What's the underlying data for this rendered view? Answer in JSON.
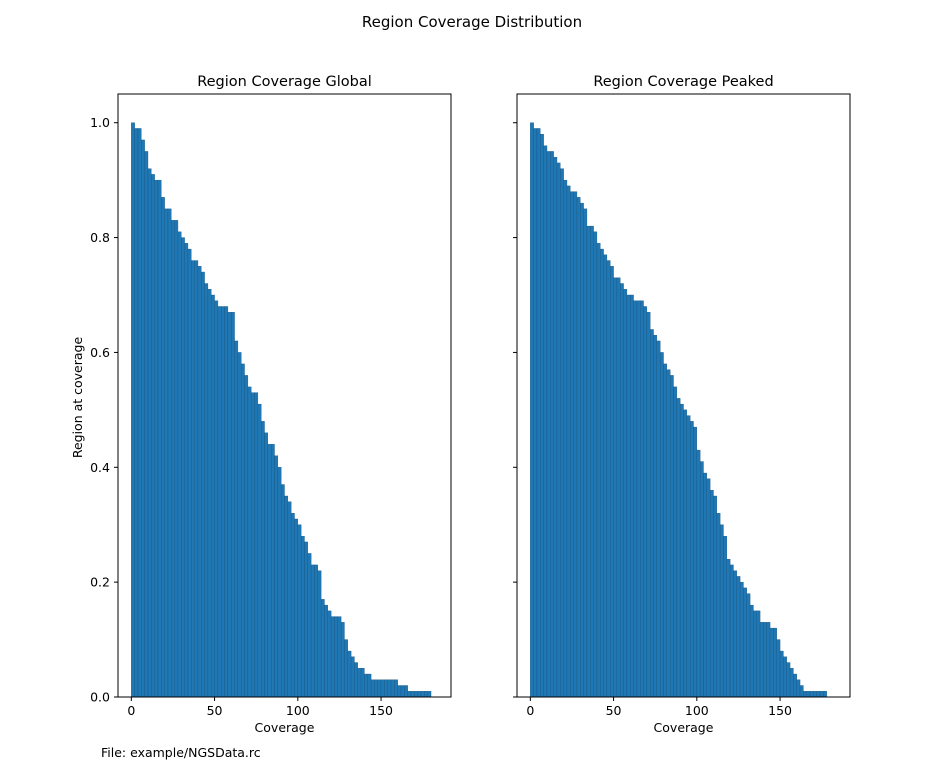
{
  "figure": {
    "suptitle": "Region Coverage Distribution",
    "footer": "File: example/NGSData.rc"
  },
  "chart_data": [
    {
      "type": "bar",
      "title": "Region Coverage Global",
      "xlabel": "Coverage",
      "ylabel": "Region at coverage",
      "xlim": [
        -8,
        192
      ],
      "ylim": [
        0,
        1.05
      ],
      "xticks": [
        0,
        50,
        100,
        150
      ],
      "yticks": [
        0.0,
        0.2,
        0.4,
        0.6,
        0.8,
        1.0
      ],
      "ytick_labels": [
        "0.0",
        "0.2",
        "0.4",
        "0.6",
        "0.8",
        "1.0"
      ],
      "color": "#1f77b4",
      "x": [
        0,
        2,
        4,
        6,
        8,
        10,
        12,
        14,
        16,
        18,
        20,
        22,
        24,
        26,
        28,
        30,
        32,
        34,
        36,
        38,
        40,
        42,
        44,
        46,
        48,
        50,
        52,
        54,
        56,
        58,
        60,
        62,
        64,
        66,
        68,
        70,
        72,
        74,
        76,
        78,
        80,
        82,
        84,
        86,
        88,
        90,
        92,
        94,
        96,
        98,
        100,
        102,
        104,
        106,
        108,
        110,
        112,
        114,
        116,
        118,
        120,
        122,
        124,
        126,
        128,
        130,
        132,
        134,
        136,
        138,
        140,
        142,
        144,
        146,
        148,
        150,
        152,
        154,
        156,
        158,
        160,
        162,
        164,
        166,
        168,
        170,
        172,
        174,
        176,
        178
      ],
      "values": [
        1.0,
        0.99,
        0.99,
        0.97,
        0.95,
        0.92,
        0.91,
        0.9,
        0.9,
        0.87,
        0.85,
        0.85,
        0.83,
        0.83,
        0.81,
        0.8,
        0.79,
        0.78,
        0.76,
        0.76,
        0.75,
        0.74,
        0.72,
        0.71,
        0.7,
        0.69,
        0.68,
        0.68,
        0.68,
        0.67,
        0.67,
        0.62,
        0.6,
        0.58,
        0.56,
        0.54,
        0.53,
        0.53,
        0.51,
        0.48,
        0.46,
        0.44,
        0.44,
        0.42,
        0.4,
        0.37,
        0.35,
        0.34,
        0.32,
        0.31,
        0.3,
        0.28,
        0.27,
        0.25,
        0.23,
        0.23,
        0.22,
        0.17,
        0.16,
        0.15,
        0.14,
        0.14,
        0.14,
        0.13,
        0.1,
        0.08,
        0.07,
        0.06,
        0.05,
        0.05,
        0.04,
        0.04,
        0.03,
        0.03,
        0.03,
        0.03,
        0.03,
        0.03,
        0.03,
        0.03,
        0.02,
        0.02,
        0.02,
        0.01,
        0.01,
        0.01,
        0.01,
        0.01,
        0.01,
        0.01
      ]
    },
    {
      "type": "bar",
      "title": "Region Coverage Peaked",
      "xlabel": "Coverage",
      "ylabel": "",
      "xlim": [
        -8,
        192
      ],
      "ylim": [
        0,
        1.05
      ],
      "xticks": [
        0,
        50,
        100,
        150
      ],
      "yticks": [
        0.0,
        0.2,
        0.4,
        0.6,
        0.8,
        1.0
      ],
      "ytick_labels": [],
      "color": "#1f77b4",
      "x": [
        0,
        2,
        4,
        6,
        8,
        10,
        12,
        14,
        16,
        18,
        20,
        22,
        24,
        26,
        28,
        30,
        32,
        34,
        36,
        38,
        40,
        42,
        44,
        46,
        48,
        50,
        52,
        54,
        56,
        58,
        60,
        62,
        64,
        66,
        68,
        70,
        72,
        74,
        76,
        78,
        80,
        82,
        84,
        86,
        88,
        90,
        92,
        94,
        96,
        98,
        100,
        102,
        104,
        106,
        108,
        110,
        112,
        114,
        116,
        118,
        120,
        122,
        124,
        126,
        128,
        130,
        132,
        134,
        136,
        138,
        140,
        142,
        144,
        146,
        148,
        150,
        152,
        154,
        156,
        158,
        160,
        162,
        164,
        166,
        168,
        170,
        172,
        174,
        176
      ],
      "values": [
        1.0,
        0.99,
        0.99,
        0.98,
        0.96,
        0.95,
        0.95,
        0.94,
        0.93,
        0.92,
        0.9,
        0.89,
        0.88,
        0.88,
        0.87,
        0.86,
        0.85,
        0.82,
        0.82,
        0.81,
        0.79,
        0.78,
        0.77,
        0.76,
        0.75,
        0.73,
        0.73,
        0.72,
        0.71,
        0.7,
        0.7,
        0.69,
        0.69,
        0.69,
        0.68,
        0.67,
        0.64,
        0.63,
        0.62,
        0.6,
        0.58,
        0.57,
        0.56,
        0.54,
        0.52,
        0.51,
        0.5,
        0.49,
        0.48,
        0.47,
        0.43,
        0.41,
        0.39,
        0.38,
        0.36,
        0.35,
        0.32,
        0.3,
        0.28,
        0.24,
        0.23,
        0.22,
        0.21,
        0.2,
        0.19,
        0.18,
        0.16,
        0.15,
        0.15,
        0.13,
        0.13,
        0.13,
        0.12,
        0.12,
        0.1,
        0.08,
        0.07,
        0.06,
        0.05,
        0.04,
        0.03,
        0.02,
        0.01,
        0.01,
        0.01,
        0.01,
        0.01,
        0.01,
        0.01
      ]
    }
  ]
}
